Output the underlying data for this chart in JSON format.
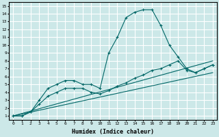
{
  "xlabel": "Humidex (Indice chaleur)",
  "ylabel": "",
  "bg_color": "#cce8e8",
  "grid_color": "#ffffff",
  "line_color": "#006666",
  "xlim": [
    -0.5,
    23.5
  ],
  "ylim": [
    0.5,
    15.5
  ],
  "xticks": [
    0,
    1,
    2,
    3,
    4,
    5,
    6,
    7,
    8,
    9,
    10,
    11,
    12,
    13,
    14,
    15,
    16,
    17,
    18,
    19,
    20,
    21,
    22,
    23
  ],
  "yticks": [
    1,
    2,
    3,
    4,
    5,
    6,
    7,
    8,
    9,
    10,
    11,
    12,
    13,
    14,
    15
  ],
  "line1_x": [
    0,
    1,
    2,
    3,
    4,
    5,
    6,
    7,
    8,
    9,
    10,
    11,
    12,
    13,
    14,
    15,
    16,
    17,
    18,
    19,
    20,
    21,
    22,
    23
  ],
  "line1_y": [
    1,
    1,
    1.5,
    3,
    4.5,
    5,
    5.5,
    5.5,
    5,
    5,
    4.5,
    9,
    11,
    13.5,
    14.2,
    14.5,
    14.5,
    12.5,
    10,
    8.5,
    7,
    6.5,
    7,
    7.5
  ],
  "line2_x": [
    0,
    1,
    2,
    3,
    4,
    5,
    6,
    7,
    8,
    9,
    10,
    11,
    12,
    13,
    14,
    15,
    16,
    17,
    18,
    19,
    20,
    21,
    22,
    23
  ],
  "line2_y": [
    1,
    1,
    1.5,
    2.5,
    3.5,
    4.0,
    4.5,
    4.5,
    4.5,
    4.0,
    3.8,
    4.2,
    4.8,
    5.2,
    5.8,
    6.2,
    6.8,
    7.0,
    7.5,
    8.0,
    6.8,
    6.5,
    7.0,
    7.5
  ],
  "line3_x": [
    0,
    23
  ],
  "line3_y": [
    1,
    8.0
  ],
  "line4_x": [
    0,
    23
  ],
  "line4_y": [
    1,
    6.5
  ]
}
